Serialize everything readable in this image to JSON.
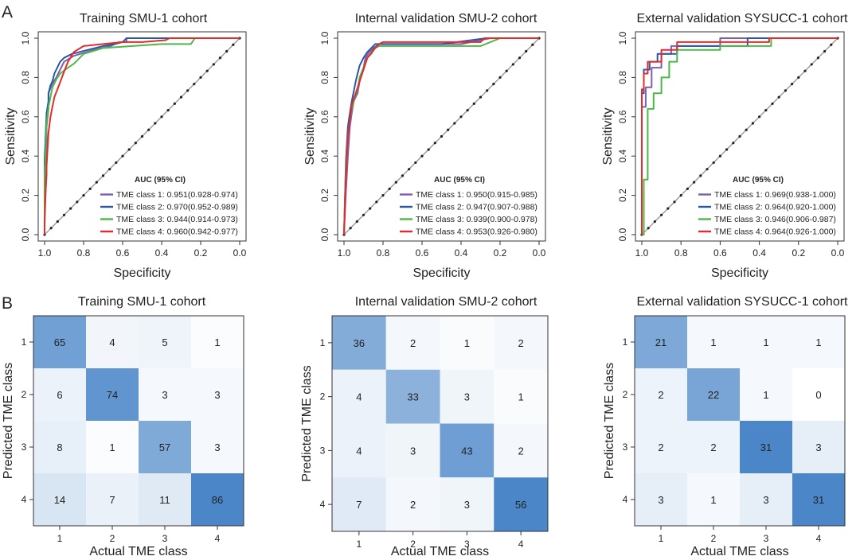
{
  "figure": {
    "panel_a_label": "A",
    "panel_b_label": "B"
  },
  "chart_data": [
    {
      "type": "line",
      "chart": "roc",
      "title": "Training SMU-1 cohort",
      "xlabel": "Specificity",
      "ylabel": "Sensitivity",
      "xlim": [
        1.0,
        0.0
      ],
      "ylim": [
        0.0,
        1.0
      ],
      "xticks": [
        "1.0",
        "0.8",
        "0.6",
        "0.4",
        "0.2",
        "0.0"
      ],
      "yticks": [
        "0.0",
        "0.2",
        "0.4",
        "0.6",
        "0.8",
        "1.0"
      ],
      "legend_title": "AUC (95% CI)",
      "legend_position": "bottom-right",
      "series": [
        {
          "name": "TME class 1: 0.951(0.928-0.974)",
          "color": "#7b5fb0",
          "x": [
            1.0,
            1.0,
            0.99,
            0.99,
            0.98,
            0.98,
            0.96,
            0.94,
            0.92,
            0.9,
            0.85,
            0.75,
            0.66,
            0.62,
            0.58,
            0.58,
            0.0
          ],
          "y": [
            0.0,
            0.14,
            0.3,
            0.55,
            0.64,
            0.72,
            0.77,
            0.8,
            0.84,
            0.88,
            0.91,
            0.94,
            0.96,
            0.98,
            0.98,
            1.0,
            1.0
          ]
        },
        {
          "name": "TME class 2: 0.970(0.952-0.989)",
          "color": "#2a57a8",
          "x": [
            1.0,
            1.0,
            0.99,
            0.98,
            0.98,
            0.97,
            0.96,
            0.95,
            0.93,
            0.92,
            0.9,
            0.86,
            0.78,
            0.7,
            0.64,
            0.6,
            0.58,
            0.0
          ],
          "y": [
            0.0,
            0.38,
            0.62,
            0.68,
            0.72,
            0.76,
            0.78,
            0.82,
            0.86,
            0.88,
            0.9,
            0.92,
            0.94,
            0.96,
            0.97,
            0.98,
            1.0,
            1.0
          ]
        },
        {
          "name": "TME class 3: 0.944(0.914-0.973)",
          "color": "#4cb848",
          "x": [
            1.0,
            1.0,
            0.99,
            0.98,
            0.97,
            0.96,
            0.94,
            0.92,
            0.88,
            0.85,
            0.8,
            0.7,
            0.55,
            0.4,
            0.25,
            0.23,
            0.0
          ],
          "y": [
            0.0,
            0.3,
            0.56,
            0.65,
            0.7,
            0.75,
            0.79,
            0.82,
            0.85,
            0.87,
            0.92,
            0.95,
            0.96,
            0.97,
            0.97,
            1.0,
            1.0
          ]
        },
        {
          "name": "TME class 4: 0.960(0.942-0.977)",
          "color": "#e32b2b",
          "x": [
            1.0,
            1.0,
            0.99,
            0.98,
            0.97,
            0.96,
            0.95,
            0.93,
            0.9,
            0.88,
            0.85,
            0.8,
            0.7,
            0.6,
            0.5,
            0.38,
            0.36,
            0.0
          ],
          "y": [
            0.0,
            0.06,
            0.35,
            0.52,
            0.6,
            0.65,
            0.7,
            0.75,
            0.83,
            0.88,
            0.93,
            0.96,
            0.97,
            0.98,
            0.98,
            0.99,
            1.0,
            1.0
          ]
        }
      ]
    },
    {
      "type": "line",
      "chart": "roc",
      "title": "Internal validation SMU-2 cohort",
      "xlabel": "Specificity",
      "ylabel": "Sensitivity",
      "xlim": [
        1.0,
        0.0
      ],
      "ylim": [
        0.0,
        1.0
      ],
      "xticks": [
        "1.0",
        "0.8",
        "0.6",
        "0.4",
        "0.2",
        "0.0"
      ],
      "yticks": [
        "0.0",
        "0.2",
        "0.4",
        "0.6",
        "0.8",
        "1.0"
      ],
      "legend_title": "AUC (95% CI)",
      "legend_position": "bottom-right",
      "series": [
        {
          "name": "TME class 1: 0.950(0.915-0.985)",
          "color": "#7b5fb0",
          "x": [
            1.0,
            0.99,
            0.98,
            0.97,
            0.96,
            0.95,
            0.93,
            0.92,
            0.9,
            0.89,
            0.87,
            0.85,
            0.82,
            0.6,
            0.4,
            0.25,
            0.0
          ],
          "y": [
            0.0,
            0.22,
            0.4,
            0.55,
            0.62,
            0.68,
            0.72,
            0.78,
            0.85,
            0.9,
            0.93,
            0.95,
            0.97,
            0.97,
            0.97,
            1.0,
            1.0
          ]
        },
        {
          "name": "TME class 2: 0.947(0.907-0.988)",
          "color": "#2a57a8",
          "x": [
            1.0,
            0.99,
            0.98,
            0.97,
            0.96,
            0.95,
            0.94,
            0.93,
            0.92,
            0.9,
            0.88,
            0.86,
            0.84,
            0.82,
            0.5,
            0.27,
            0.0
          ],
          "y": [
            0.0,
            0.38,
            0.55,
            0.62,
            0.68,
            0.73,
            0.78,
            0.82,
            0.86,
            0.9,
            0.93,
            0.95,
            0.97,
            0.97,
            0.97,
            1.0,
            1.0
          ]
        },
        {
          "name": "TME class 3: 0.939(0.900-0.978)",
          "color": "#4cb848",
          "x": [
            1.0,
            0.99,
            0.98,
            0.97,
            0.96,
            0.95,
            0.93,
            0.92,
            0.9,
            0.88,
            0.86,
            0.84,
            0.82,
            0.5,
            0.3,
            0.2,
            0.0
          ],
          "y": [
            0.0,
            0.35,
            0.5,
            0.58,
            0.64,
            0.68,
            0.74,
            0.8,
            0.85,
            0.9,
            0.92,
            0.95,
            0.96,
            0.96,
            0.96,
            1.0,
            1.0
          ]
        },
        {
          "name": "TME class 4: 0.953(0.926-0.980)",
          "color": "#e32b2b",
          "x": [
            1.0,
            0.99,
            0.98,
            0.97,
            0.96,
            0.94,
            0.92,
            0.9,
            0.88,
            0.85,
            0.82,
            0.8,
            0.6,
            0.4,
            0.3,
            0.28,
            0.0
          ],
          "y": [
            0.0,
            0.3,
            0.5,
            0.58,
            0.66,
            0.72,
            0.78,
            0.84,
            0.9,
            0.94,
            0.97,
            0.98,
            0.98,
            0.98,
            0.98,
            1.0,
            1.0
          ]
        }
      ]
    },
    {
      "type": "line",
      "chart": "roc",
      "title": "External validation SYSUCC-1 cohort",
      "xlabel": "Specificity",
      "ylabel": "Sensitivity",
      "xlim": [
        1.0,
        0.0
      ],
      "ylim": [
        0.0,
        1.0
      ],
      "xticks": [
        "1.0",
        "0.8",
        "0.6",
        "0.4",
        "0.2",
        "0.0"
      ],
      "yticks": [
        "0.0",
        "0.2",
        "0.4",
        "0.6",
        "0.8",
        "1.0"
      ],
      "legend_title": "AUC (95% CI)",
      "legend_position": "bottom-right",
      "series": [
        {
          "name": "TME class 1: 0.969(0.938-1.000)",
          "color": "#7b5fb0",
          "x": [
            1.0,
            1.0,
            0.98,
            0.98,
            0.95,
            0.95,
            0.9,
            0.9,
            0.85,
            0.85,
            0.6,
            0.6,
            0.0
          ],
          "y": [
            0.0,
            0.65,
            0.65,
            0.75,
            0.75,
            0.85,
            0.85,
            0.92,
            0.92,
            0.96,
            0.96,
            1.0,
            1.0
          ]
        },
        {
          "name": "TME class 2: 0.964(0.920-1.000)",
          "color": "#2a57a8",
          "x": [
            1.0,
            1.0,
            0.99,
            0.99,
            0.96,
            0.96,
            0.92,
            0.92,
            0.82,
            0.82,
            0.46,
            0.46,
            0.0
          ],
          "y": [
            0.0,
            0.72,
            0.72,
            0.84,
            0.84,
            0.88,
            0.88,
            0.92,
            0.92,
            0.96,
            0.96,
            1.0,
            1.0
          ]
        },
        {
          "name": "TME class 3: 0.946(0.906-0.987)",
          "color": "#4cb848",
          "x": [
            1.0,
            0.99,
            0.99,
            0.97,
            0.97,
            0.94,
            0.94,
            0.9,
            0.9,
            0.86,
            0.86,
            0.82,
            0.82,
            0.6,
            0.6,
            0.34,
            0.34,
            0.0
          ],
          "y": [
            0.0,
            0.0,
            0.28,
            0.28,
            0.64,
            0.64,
            0.72,
            0.72,
            0.8,
            0.8,
            0.88,
            0.88,
            0.94,
            0.94,
            0.96,
            0.96,
            1.0,
            1.0
          ]
        },
        {
          "name": "TME class 4: 0.964(0.926-1.000)",
          "color": "#e32b2b",
          "x": [
            1.0,
            1.0,
            0.99,
            0.99,
            0.97,
            0.97,
            0.9,
            0.9,
            0.82,
            0.82,
            0.35,
            0.35,
            0.0
          ],
          "y": [
            0.0,
            0.74,
            0.74,
            0.82,
            0.82,
            0.88,
            0.88,
            0.94,
            0.94,
            0.98,
            0.98,
            1.0,
            1.0
          ]
        }
      ]
    },
    {
      "type": "heatmap",
      "title": "Training SMU-1 cohort",
      "xlabel": "Actual TME class",
      "ylabel": "Predicted TME class",
      "x_categories": [
        "1",
        "2",
        "3",
        "4"
      ],
      "y_categories": [
        "1",
        "2",
        "3",
        "4"
      ],
      "values": [
        [
          65,
          4,
          5,
          1
        ],
        [
          6,
          74,
          3,
          3
        ],
        [
          8,
          1,
          57,
          3
        ],
        [
          14,
          7,
          11,
          86
        ]
      ],
      "colormap": {
        "low": "#ffffff",
        "high": "#4a86c8"
      }
    },
    {
      "type": "heatmap",
      "title": "Internal validation SMU-2 cohort",
      "xlabel": "Actual TME class",
      "ylabel": "Predicted TME class",
      "x_categories": [
        "1",
        "2",
        "3",
        "4"
      ],
      "y_categories": [
        "1",
        "2",
        "3",
        "4"
      ],
      "values": [
        [
          36,
          2,
          1,
          2
        ],
        [
          4,
          33,
          3,
          1
        ],
        [
          4,
          3,
          43,
          2
        ],
        [
          7,
          2,
          3,
          56
        ]
      ],
      "colormap": {
        "low": "#ffffff",
        "high": "#4a86c8"
      }
    },
    {
      "type": "heatmap",
      "title": "External validation SYSUCC-1 cohort",
      "xlabel": "Actual TME class",
      "ylabel": "Predicted TME class",
      "x_categories": [
        "1",
        "2",
        "3",
        "4"
      ],
      "y_categories": [
        "1",
        "2",
        "3",
        "4"
      ],
      "values": [
        [
          21,
          1,
          1,
          1
        ],
        [
          2,
          22,
          1,
          0
        ],
        [
          2,
          2,
          31,
          3
        ],
        [
          3,
          1,
          3,
          31
        ]
      ],
      "colormap": {
        "low": "#ffffff",
        "high": "#4a86c8"
      }
    }
  ]
}
